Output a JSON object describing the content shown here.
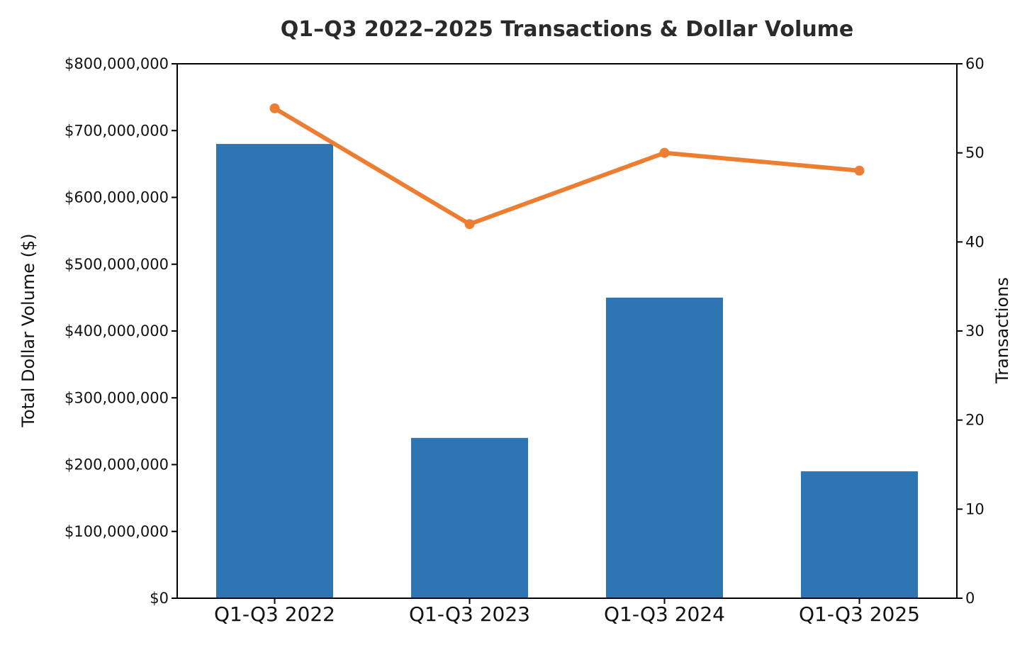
{
  "chart_data": {
    "type": "bar",
    "title": "Q1–Q3 2022–2025 Transactions & Dollar Volume",
    "categories": [
      "Q1-Q3 2022",
      "Q1-Q3 2023",
      "Q1-Q3 2024",
      "Q1-Q3 2025"
    ],
    "series": [
      {
        "type": "bar",
        "axis": "left",
        "values": [
          680000000,
          240000000,
          450000000,
          190000000
        ]
      },
      {
        "type": "line",
        "axis": "right",
        "values": [
          55,
          42,
          50,
          48
        ]
      }
    ],
    "ylabel": "Total Dollar Volume ($)",
    "ylim": [
      0,
      800000000
    ],
    "yticks": [
      "$0",
      "$100,000,000",
      "$200,000,000",
      "$300,000,000",
      "$400,000,000",
      "$500,000,000",
      "$600,000,000",
      "$700,000,000",
      "$800,000,000"
    ],
    "y2label": "Transactions",
    "y2lim": [
      0,
      60
    ],
    "y2ticks": [
      "0",
      "10",
      "20",
      "30",
      "40",
      "50",
      "60"
    ],
    "grid": false,
    "colors": {
      "bar": "#2e75b4",
      "line": "#ed7d31"
    }
  }
}
